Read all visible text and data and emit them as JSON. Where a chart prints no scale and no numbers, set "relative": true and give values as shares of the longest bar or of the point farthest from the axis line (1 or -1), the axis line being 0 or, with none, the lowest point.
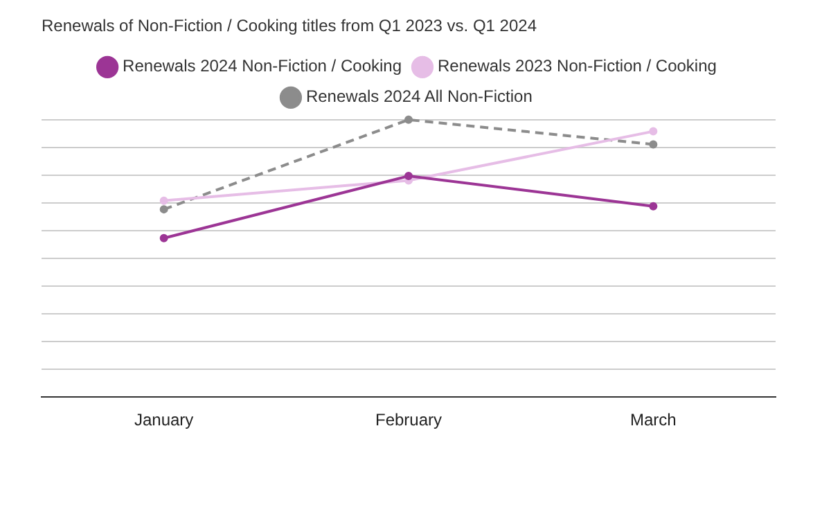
{
  "chart_data": {
    "type": "line",
    "title": "Renewals of Non-Fiction / Cooking titles from Q1 2023 vs. Q1 2024",
    "categories": [
      "January",
      "February",
      "March"
    ],
    "relative": true,
    "grid": "y",
    "legend": "top",
    "marker": "circle",
    "series": [
      {
        "name": "Renewals 2024 Non-Fiction / Cooking",
        "color": "#9c3595",
        "values": [
          0.573,
          0.797,
          0.688
        ],
        "line_style": "solid"
      },
      {
        "name": "Renewals 2023 Non-Fiction / Cooking",
        "color": "#e6bde6",
        "values": [
          0.708,
          0.781,
          0.958
        ],
        "line_style": "solid"
      },
      {
        "name": "Renewals 2024 All Non-Fiction",
        "color": "#8c8c8c",
        "values": [
          0.677,
          1,
          0.911
        ],
        "line_style": "dashed"
      }
    ]
  }
}
